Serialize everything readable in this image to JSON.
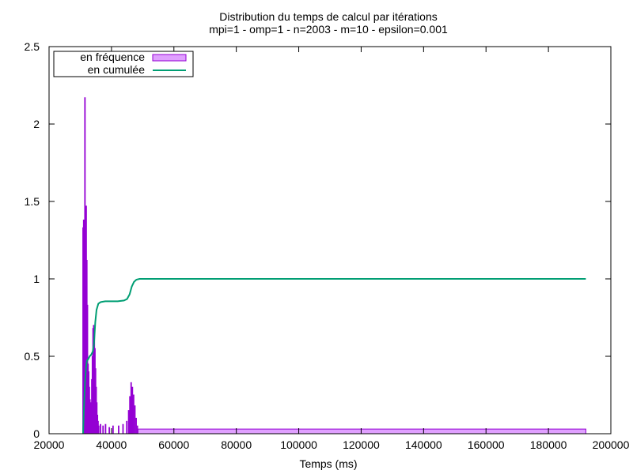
{
  "chart_data": {
    "type": "bar",
    "title": "Distribution du temps de calcul par itérations",
    "subtitle": "mpi=1 - omp=1 - n=2003 - m=10 - epsilon=0.001",
    "xlabel": "Temps (ms)",
    "ylabel": "",
    "xlim": [
      20000,
      200000
    ],
    "ylim": [
      0,
      2.5
    ],
    "x_ticks": [
      "20000",
      "40000",
      "60000",
      "80000",
      "100000",
      "120000",
      "140000",
      "160000",
      "180000",
      "200000"
    ],
    "y_ticks": [
      "0",
      "0.5",
      "1",
      "1.5",
      "2",
      "2.5"
    ],
    "x_tick_values": [
      20000,
      40000,
      60000,
      80000,
      100000,
      120000,
      140000,
      160000,
      180000,
      200000
    ],
    "y_tick_values": [
      0,
      0.5,
      1,
      1.5,
      2,
      2.5
    ],
    "grid": false,
    "legend_position": "top-left",
    "series": [
      {
        "name": "en fréquence",
        "kind": "histogram",
        "color": "#9400d3",
        "fill": "#e0a0ff",
        "bins": [
          {
            "x": 30900,
            "y": 1.33
          },
          {
            "x": 31100,
            "y": 1.38
          },
          {
            "x": 31300,
            "y": 1.12
          },
          {
            "x": 31500,
            "y": 2.17
          },
          {
            "x": 31700,
            "y": 0.95
          },
          {
            "x": 31900,
            "y": 1.47
          },
          {
            "x": 32100,
            "y": 1.12
          },
          {
            "x": 32300,
            "y": 0.83
          },
          {
            "x": 32500,
            "y": 0.45
          },
          {
            "x": 32700,
            "y": 0.4
          },
          {
            "x": 32900,
            "y": 0.3
          },
          {
            "x": 33100,
            "y": 0.22
          },
          {
            "x": 33300,
            "y": 0.15
          },
          {
            "x": 33500,
            "y": 0.2
          },
          {
            "x": 33700,
            "y": 0.35
          },
          {
            "x": 33900,
            "y": 0.5
          },
          {
            "x": 34100,
            "y": 0.68
          },
          {
            "x": 34300,
            "y": 0.7
          },
          {
            "x": 34500,
            "y": 0.65
          },
          {
            "x": 34700,
            "y": 0.55
          },
          {
            "x": 34900,
            "y": 0.42
          },
          {
            "x": 35100,
            "y": 0.3
          },
          {
            "x": 35300,
            "y": 0.2
          },
          {
            "x": 35500,
            "y": 0.12
          },
          {
            "x": 35700,
            "y": 0.08
          },
          {
            "x": 35900,
            "y": 0.05
          },
          {
            "x": 36500,
            "y": 0.06
          },
          {
            "x": 37300,
            "y": 0.05
          },
          {
            "x": 38100,
            "y": 0.06
          },
          {
            "x": 39300,
            "y": 0.04
          },
          {
            "x": 40500,
            "y": 0.05
          },
          {
            "x": 42300,
            "y": 0.05
          },
          {
            "x": 43700,
            "y": 0.06
          },
          {
            "x": 44900,
            "y": 0.08
          },
          {
            "x": 45500,
            "y": 0.15
          },
          {
            "x": 45900,
            "y": 0.24
          },
          {
            "x": 46300,
            "y": 0.33
          },
          {
            "x": 46700,
            "y": 0.3
          },
          {
            "x": 47100,
            "y": 0.25
          },
          {
            "x": 47500,
            "y": 0.18
          },
          {
            "x": 47900,
            "y": 0.1
          },
          {
            "x": 48300,
            "y": 0.05
          }
        ],
        "tail": {
          "x_start": 48500,
          "x_end": 192000,
          "y": 0.03
        }
      },
      {
        "name": "en cumulée",
        "kind": "line",
        "color": "#009e73",
        "points": [
          [
            30900,
            0.0
          ],
          [
            31200,
            0.18
          ],
          [
            31500,
            0.33
          ],
          [
            31800,
            0.42
          ],
          [
            32100,
            0.47
          ],
          [
            32500,
            0.48
          ],
          [
            33000,
            0.5
          ],
          [
            33500,
            0.51
          ],
          [
            34000,
            0.53
          ],
          [
            34400,
            0.58
          ],
          [
            34800,
            0.72
          ],
          [
            35200,
            0.8
          ],
          [
            35800,
            0.84
          ],
          [
            36500,
            0.85
          ],
          [
            38000,
            0.855
          ],
          [
            40000,
            0.855
          ],
          [
            42000,
            0.855
          ],
          [
            44000,
            0.86
          ],
          [
            45000,
            0.87
          ],
          [
            45800,
            0.9
          ],
          [
            46500,
            0.95
          ],
          [
            47200,
            0.98
          ],
          [
            48000,
            0.995
          ],
          [
            49000,
            1.0
          ],
          [
            192000,
            1.0
          ]
        ]
      }
    ]
  }
}
